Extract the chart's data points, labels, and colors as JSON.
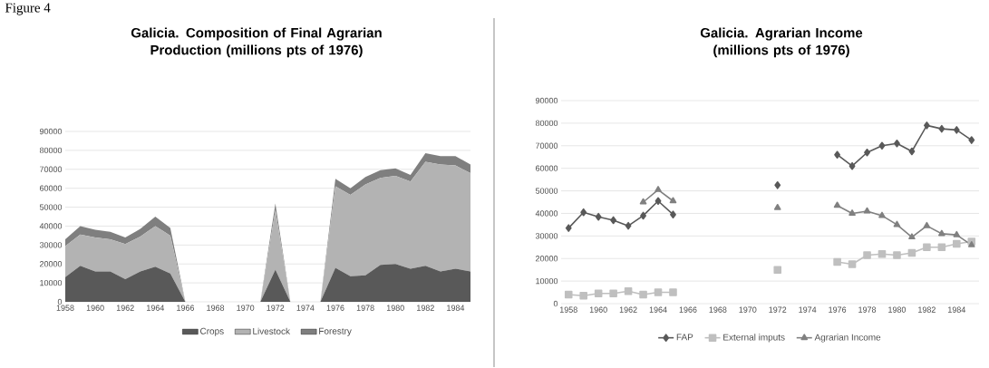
{
  "chart_data": [
    {
      "type": "area",
      "title": "Galicia. Composition of Final Agrarian Production (millions pts of 1976)",
      "annotations": [
        "Figure 4"
      ],
      "stacked": true,
      "grid": "y",
      "legend": "bottom",
      "x": [
        1958,
        1959,
        1960,
        1961,
        1962,
        1963,
        1964,
        1965,
        1966,
        1967,
        1968,
        1969,
        1970,
        1971,
        1972,
        1973,
        1974,
        1975,
        1976,
        1977,
        1978,
        1979,
        1980,
        1981,
        1982,
        1983,
        1984,
        1985
      ],
      "xlim": [
        1958,
        1985
      ],
      "xticks": [
        1958,
        1960,
        1962,
        1964,
        1966,
        1968,
        1970,
        1972,
        1974,
        1976,
        1978,
        1980,
        1982,
        1984
      ],
      "ylim": [
        0,
        90000
      ],
      "yticks": [
        0,
        10000,
        20000,
        30000,
        40000,
        50000,
        60000,
        70000,
        80000,
        90000
      ],
      "series": [
        {
          "name": "Crops",
          "color": "#595959",
          "values": [
            13000,
            19000,
            16000,
            16000,
            12000,
            16000,
            18500,
            15000,
            0,
            0,
            0,
            0,
            0,
            0,
            17000,
            0,
            0,
            0,
            18000,
            13500,
            14000,
            19500,
            20000,
            17500,
            19000,
            16000,
            17500,
            16000
          ]
        },
        {
          "name": "Livestock",
          "color": "#b3b3b3",
          "values": [
            16500,
            16500,
            18000,
            17000,
            18500,
            18500,
            21500,
            20000,
            0,
            0,
            0,
            0,
            0,
            0,
            31500,
            0,
            0,
            0,
            43000,
            43000,
            48000,
            46000,
            46500,
            46000,
            55000,
            56500,
            54500,
            52000
          ]
        },
        {
          "name": "Forestry",
          "color": "#7f7f7f",
          "values": [
            3500,
            4500,
            4000,
            4000,
            3500,
            4000,
            5000,
            4000,
            0,
            0,
            0,
            0,
            0,
            0,
            3500,
            0,
            0,
            0,
            4000,
            3500,
            4000,
            4000,
            4000,
            3500,
            4500,
            4500,
            5000,
            4500
          ]
        }
      ]
    },
    {
      "type": "line",
      "title": "Galicia. Agrarian Income (millions pts of 1976)",
      "grid": "y",
      "legend": "bottom",
      "line_style": "solid",
      "x": [
        1958,
        1959,
        1960,
        1961,
        1962,
        1963,
        1964,
        1965,
        1966,
        1967,
        1968,
        1969,
        1970,
        1971,
        1972,
        1973,
        1974,
        1975,
        1976,
        1977,
        1978,
        1979,
        1980,
        1981,
        1982,
        1983,
        1984,
        1985
      ],
      "xlim": [
        1957.5,
        1985.5
      ],
      "xticks": [
        1958,
        1960,
        1962,
        1964,
        1966,
        1968,
        1970,
        1972,
        1974,
        1976,
        1978,
        1980,
        1982,
        1984
      ],
      "ylim": [
        0,
        90000
      ],
      "yticks": [
        0,
        10000,
        20000,
        30000,
        40000,
        50000,
        60000,
        70000,
        80000,
        90000
      ],
      "series": [
        {
          "name": "FAP",
          "color": "#595959",
          "marker": "diamond",
          "values": [
            33500,
            40500,
            38500,
            37000,
            34500,
            39000,
            45500,
            39500,
            null,
            null,
            null,
            null,
            null,
            null,
            52500,
            null,
            null,
            null,
            66000,
            61000,
            67000,
            70000,
            71000,
            67500,
            79000,
            77500,
            77000,
            72500
          ]
        },
        {
          "name": "External imputs",
          "color": "#bfbfbf",
          "marker": "square",
          "values": [
            4000,
            3500,
            4500,
            4500,
            5500,
            4000,
            5000,
            5000,
            null,
            null,
            null,
            null,
            null,
            null,
            15000,
            null,
            null,
            null,
            18500,
            17500,
            21500,
            22000,
            21500,
            22500,
            25000,
            25000,
            26500,
            27500
          ]
        },
        {
          "name": "Agrarian Income",
          "color": "#808080",
          "marker": "triangle",
          "values": [
            null,
            null,
            null,
            null,
            null,
            45000,
            50500,
            45500,
            null,
            null,
            null,
            null,
            null,
            null,
            42500,
            null,
            null,
            null,
            43500,
            40000,
            41000,
            39000,
            35000,
            29500,
            34500,
            31000,
            30500,
            26000
          ]
        }
      ]
    }
  ]
}
